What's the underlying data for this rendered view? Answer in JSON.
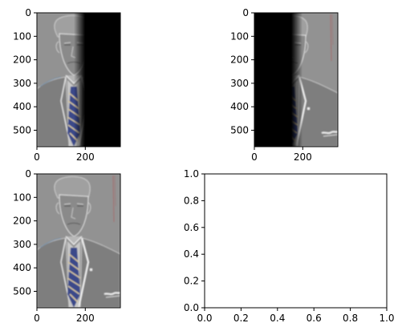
{
  "chart_data": [
    {
      "type": "image",
      "panel": "top-left",
      "title": "",
      "xlabel": "",
      "ylabel": "",
      "xlim": [
        0,
        345
      ],
      "ylim": [
        570,
        0
      ],
      "xticks": [
        0,
        200
      ],
      "yticks": [
        0,
        100,
        200,
        300,
        400,
        500
      ],
      "xtick_labels": [
        "0",
        "200"
      ],
      "ytick_labels": [
        "0",
        "100",
        "200",
        "300",
        "400",
        "500"
      ],
      "image_description": "Left part of grayscale high-pass filtered portrait (man in suit with striped tie), right part black"
    },
    {
      "type": "image",
      "panel": "top-right",
      "title": "",
      "xlabel": "",
      "ylabel": "",
      "xlim": [
        0,
        345
      ],
      "ylim": [
        570,
        0
      ],
      "xticks": [
        0,
        200
      ],
      "yticks": [
        0,
        100,
        200,
        300,
        400,
        500
      ],
      "xtick_labels": [
        "0",
        "200"
      ],
      "ytick_labels": [
        "0",
        "100",
        "200",
        "300",
        "400",
        "500"
      ],
      "image_description": "Right part of filtered portrait, left part black"
    },
    {
      "type": "image",
      "panel": "bottom-left",
      "title": "",
      "xlabel": "",
      "ylabel": "",
      "xlim": [
        0,
        345
      ],
      "ylim": [
        570,
        0
      ],
      "xticks": [
        0,
        200
      ],
      "yticks": [
        0,
        100,
        200,
        300,
        400,
        500
      ],
      "xtick_labels": [
        "0",
        "200"
      ],
      "ytick_labels": [
        "0",
        "100",
        "200",
        "300",
        "400",
        "500"
      ],
      "image_description": "Full filtered portrait combined"
    },
    {
      "type": "empty",
      "panel": "bottom-right",
      "title": "",
      "xlabel": "",
      "ylabel": "",
      "xlim": [
        0,
        1
      ],
      "ylim": [
        0,
        1
      ],
      "xticks": [
        0,
        0.2,
        0.4,
        0.6,
        0.8,
        1.0
      ],
      "yticks": [
        0,
        0.2,
        0.4,
        0.6,
        0.8,
        1.0
      ],
      "xtick_labels": [
        "0.0",
        "0.2",
        "0.4",
        "0.6",
        "0.8",
        "1.0"
      ],
      "ytick_labels": [
        "0.0",
        "0.2",
        "0.4",
        "0.6",
        "0.8",
        "1.0"
      ]
    }
  ],
  "colors": {
    "frame": "#000000",
    "image_gray": "#8c8c8c",
    "mask_black": "#000000",
    "tie_blue": "#3a4a8a",
    "edge_highlight": "#e8e8e8",
    "edge_red": "#b05050"
  }
}
